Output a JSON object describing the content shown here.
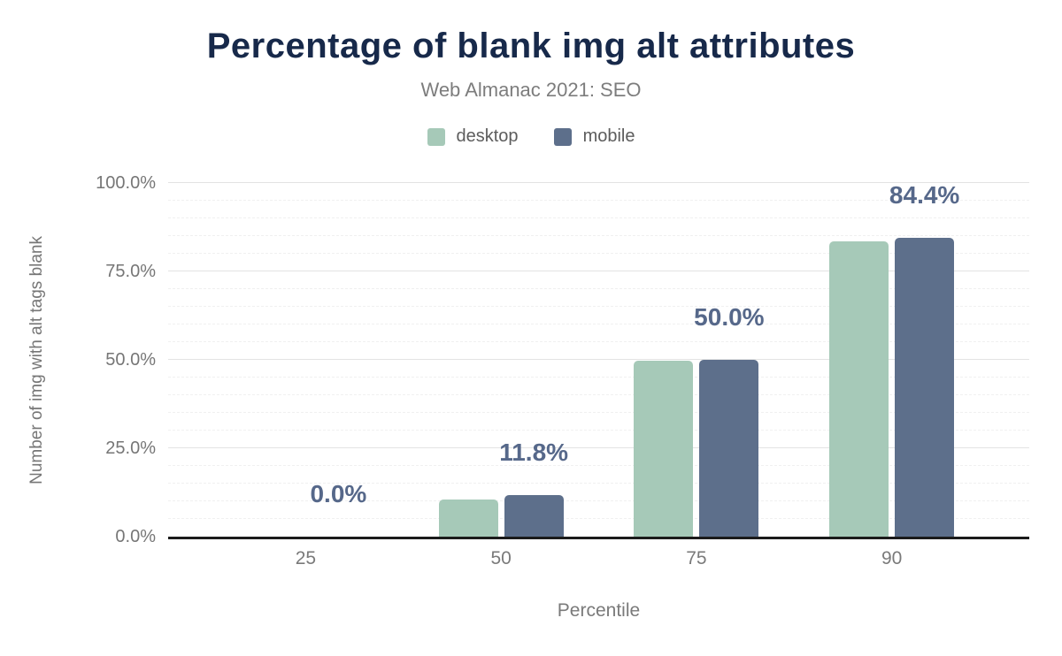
{
  "chart_data": {
    "type": "bar",
    "title": "Percentage of blank img alt attributes",
    "subtitle": "Web Almanac 2021: SEO",
    "xlabel": "Percentile",
    "ylabel": "Number of img with alt tags blank",
    "categories": [
      "25",
      "50",
      "75",
      "90"
    ],
    "series": [
      {
        "name": "desktop",
        "color": "#a6c9b8",
        "values": [
          0,
          10.5,
          49.7,
          83.5
        ]
      },
      {
        "name": "mobile",
        "color": "#5d6f8b",
        "values": [
          0,
          11.8,
          50.0,
          84.4
        ]
      }
    ],
    "bar_labels": [
      "0.0%",
      "11.8%",
      "50.0%",
      "84.4%"
    ],
    "bar_labels_follow_series": "mobile",
    "ylim": [
      0,
      100
    ],
    "yticks": [
      0,
      25,
      50,
      75,
      100
    ],
    "ytick_labels": [
      "0.0%",
      "25.0%",
      "50.0%",
      "75.0%",
      "100.0%"
    ],
    "minor_grid_step": 5,
    "major_grid_step": 25,
    "grid": "horizontal",
    "legend_position": "top center",
    "styles": {
      "title_color": "#17294a",
      "subtitle_color": "#7d7d7d",
      "tick_color": "#767676",
      "bar_label_color": "#56688a",
      "axis_color": "#1b1b1b"
    }
  }
}
